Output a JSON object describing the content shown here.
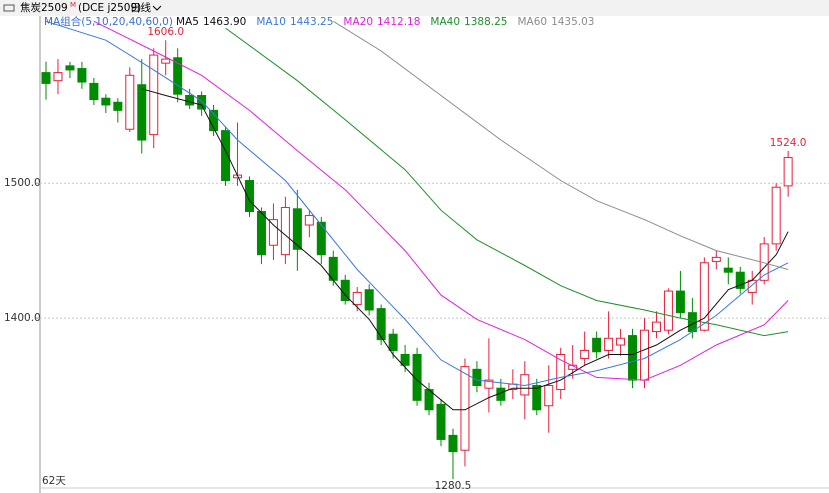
{
  "chart_data": {
    "type": "candlestick",
    "title": "焦炭2509",
    "title_mark": "M",
    "subtitle": "(DCE j2509)",
    "period": "日线",
    "ma_group": "MA组合(5,10,20,40,60,0)",
    "days_label": "62天",
    "ylim": [
      1274,
      1621
    ],
    "yticks": [
      {
        "value": 1400,
        "label": "1400.0"
      },
      {
        "value": 1500,
        "label": "1500.0"
      }
    ],
    "grid": true,
    "up_color": "#e8203b",
    "down_color": "#008c00",
    "open": [
      1582,
      1576,
      1587,
      1585,
      1574,
      1563,
      1560,
      1540,
      1573,
      1536,
      1589,
      1593,
      1565,
      1565,
      1554,
      1539,
      1504,
      1502,
      1479,
      1454,
      1447,
      1481,
      1469,
      1471,
      1445,
      1428,
      1410,
      1421,
      1407,
      1388,
      1373,
      1373,
      1347,
      1336,
      1313,
      1302,
      1362,
      1348,
      1348,
      1347,
      1343,
      1350,
      1335,
      1347,
      1362,
      1370,
      1385,
      1376,
      1380,
      1387,
      1354,
      1390,
      1391,
      1420,
      1404,
      1391,
      1442,
      1437,
      1434,
      1419,
      1428,
      1455,
      1498
    ],
    "high": [
      1590,
      1592,
      1590,
      1590,
      1578,
      1566,
      1563,
      1586,
      1592,
      1600,
      1606,
      1600,
      1570,
      1568,
      1558,
      1542,
      1545,
      1505,
      1482,
      1485,
      1490,
      1495,
      1480,
      1475,
      1450,
      1432,
      1423,
      1425,
      1410,
      1392,
      1380,
      1378,
      1352,
      1340,
      1318,
      1370,
      1368,
      1385,
      1355,
      1362,
      1368,
      1355,
      1365,
      1378,
      1380,
      1390,
      1390,
      1405,
      1392,
      1392,
      1400,
      1405,
      1422,
      1435,
      1415,
      1445,
      1450,
      1445,
      1438,
      1435,
      1460,
      1500,
      1524
    ],
    "low": [
      1562,
      1566,
      1578,
      1570,
      1558,
      1552,
      1545,
      1538,
      1522,
      1526,
      1580,
      1560,
      1555,
      1550,
      1535,
      1498,
      1498,
      1475,
      1440,
      1443,
      1440,
      1435,
      1460,
      1440,
      1424,
      1410,
      1405,
      1402,
      1380,
      1370,
      1360,
      1335,
      1328,
      1305,
      1280.5,
      1290,
      1345,
      1330,
      1335,
      1340,
      1325,
      1328,
      1315,
      1340,
      1355,
      1365,
      1370,
      1370,
      1372,
      1348,
      1348,
      1385,
      1388,
      1400,
      1385,
      1390,
      1436,
      1425,
      1418,
      1410,
      1425,
      1450,
      1490
    ],
    "close": [
      1574,
      1582,
      1584,
      1575,
      1562,
      1558,
      1554,
      1580,
      1532,
      1595,
      1592,
      1566,
      1558,
      1555,
      1539,
      1502,
      1506,
      1479,
      1447,
      1473,
      1482,
      1451,
      1476,
      1447,
      1428,
      1413,
      1419,
      1406,
      1384,
      1376,
      1365,
      1339,
      1332,
      1310,
      1301,
      1364,
      1350,
      1354,
      1339,
      1351,
      1358,
      1332,
      1350,
      1373,
      1365,
      1376,
      1375,
      1385,
      1385,
      1354,
      1391,
      1397,
      1420,
      1404,
      1390,
      1441,
      1445,
      1434,
      1422,
      1428,
      1455,
      1497,
      1519
    ],
    "series": [
      {
        "name": "MA5",
        "value_label": "1463.90",
        "color": "#111111",
        "x": [
          8,
          10,
          13,
          15,
          17,
          19,
          21,
          23,
          25,
          27,
          29,
          31,
          34,
          35,
          37,
          39,
          41,
          43,
          45,
          47,
          49,
          51,
          53,
          55,
          57,
          59,
          61,
          62
        ],
        "values": [
          1570,
          1565,
          1558,
          1524,
          1487,
          1469,
          1454,
          1439,
          1417,
          1399,
          1373,
          1354,
          1332,
          1332,
          1341,
          1348,
          1348,
          1354,
          1365,
          1373,
          1373,
          1380,
          1391,
          1400,
          1421,
          1428,
          1447,
          1464
        ]
      },
      {
        "name": "MA10",
        "value_label": "1443.25",
        "color": "#3a78e0",
        "x": [
          0,
          5,
          9,
          13,
          16,
          20,
          23,
          26,
          30,
          33,
          36,
          40,
          43,
          46,
          50,
          53,
          56,
          60,
          62
        ],
        "values": [
          1620,
          1606,
          1584,
          1561,
          1532,
          1502,
          1469,
          1436,
          1399,
          1369,
          1354,
          1350,
          1356,
          1361,
          1370,
          1384,
          1402,
          1432,
          1441
        ]
      },
      {
        "name": "MA20",
        "value_label": "1412.18",
        "color": "#e020e0",
        "x": [
          4,
          9,
          13,
          17,
          21,
          25,
          30,
          33,
          36,
          40,
          43,
          46,
          50,
          53,
          56,
          60,
          62
        ],
        "values": [
          1620,
          1598,
          1580,
          1554,
          1524,
          1495,
          1450,
          1417,
          1399,
          1384,
          1369,
          1356,
          1354,
          1365,
          1380,
          1395,
          1413
        ]
      },
      {
        "name": "MA40",
        "value_label": "1388.25",
        "color": "#1f8f2a",
        "x": [
          15,
          21,
          25,
          30,
          33,
          36,
          40,
          43,
          46,
          50,
          53,
          56,
          60,
          62
        ],
        "values": [
          1615,
          1576,
          1547,
          1510,
          1480,
          1458,
          1439,
          1424,
          1413,
          1406,
          1400,
          1395,
          1387,
          1390
        ]
      },
      {
        "name": "MA60",
        "value_label": "1435.03",
        "color": "#8c8c8c",
        "x": [
          24,
          28,
          33,
          38,
          43,
          46,
          50,
          53,
          56,
          60,
          62
        ],
        "values": [
          1620,
          1598,
          1565,
          1532,
          1502,
          1487,
          1473,
          1461,
          1450,
          1441,
          1436
        ]
      }
    ],
    "annotations": [
      {
        "text": "1606.0",
        "value": 1606
      },
      {
        "text": "1524.0",
        "value": 1524
      },
      {
        "text": "1280.5",
        "value": 1280.5
      }
    ]
  }
}
